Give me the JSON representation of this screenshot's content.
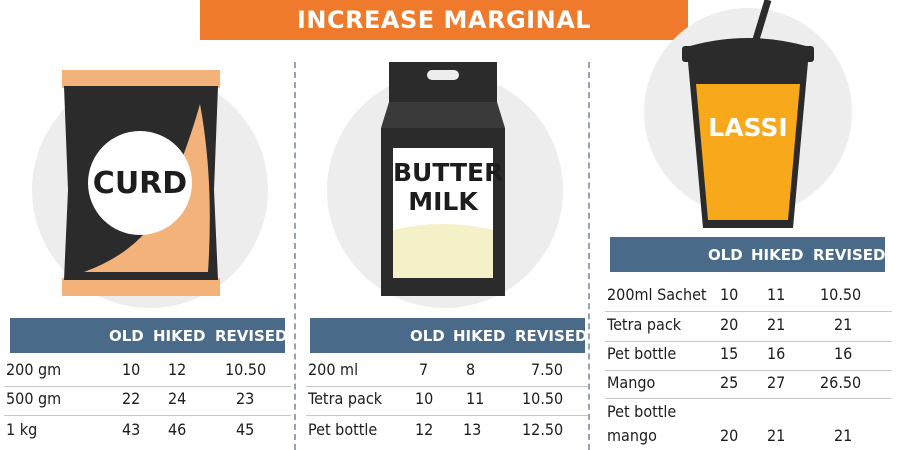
{
  "banner": {
    "title": "INCREASE MARGINAL"
  },
  "curd": {
    "label": "CURD",
    "headers": {
      "old": "OLD",
      "hiked": "HIKED",
      "revised": "REVISED"
    },
    "rows": [
      {
        "item": "200 gm",
        "old": "10",
        "hiked": "12",
        "revised": "10.50"
      },
      {
        "item": "500 gm",
        "old": "22",
        "hiked": "24",
        "revised": "23"
      },
      {
        "item": "1 kg",
        "old": "43",
        "hiked": "46",
        "revised": "45"
      }
    ]
  },
  "buttermilk": {
    "label_line1": "BUTTER",
    "label_line2": "MILK",
    "headers": {
      "old": "OLD",
      "hiked": "HIKED",
      "revised": "REVISED"
    },
    "rows": [
      {
        "item": "200 ml",
        "old": "7",
        "hiked": "8",
        "revised": "7.50"
      },
      {
        "item": "Tetra pack",
        "old": "10",
        "hiked": "11",
        "revised": "10.50"
      },
      {
        "item": "Pet bottle",
        "old": "12",
        "hiked": "13",
        "revised": "12.50"
      }
    ]
  },
  "lassi": {
    "label": "LASSI",
    "headers": {
      "old": "OLD",
      "hiked": "HIKED",
      "revised": "REVISED"
    },
    "rows": [
      {
        "item": "200ml Sachet",
        "old": "10",
        "hiked": "11",
        "revised": "10.50"
      },
      {
        "item": "Tetra pack",
        "old": "20",
        "hiked": "21",
        "revised": "21"
      },
      {
        "item": "Pet bottle",
        "old": "15",
        "hiked": "16",
        "revised": "16"
      },
      {
        "item": "Mango",
        "old": "25",
        "hiked": "27",
        "revised": "26.50"
      },
      {
        "item_line1": "Pet bottle",
        "item_line2": "mango",
        "old": "20",
        "hiked": "21",
        "revised": "21"
      }
    ]
  },
  "colors": {
    "banner": "#f07a2b",
    "table_header": "#4a6a8a",
    "package_dark": "#2b2b2b",
    "curd_fill": "#f3b27a",
    "lassi_fill": "#f7a81b",
    "milk_fill": "#f4f1c8"
  }
}
